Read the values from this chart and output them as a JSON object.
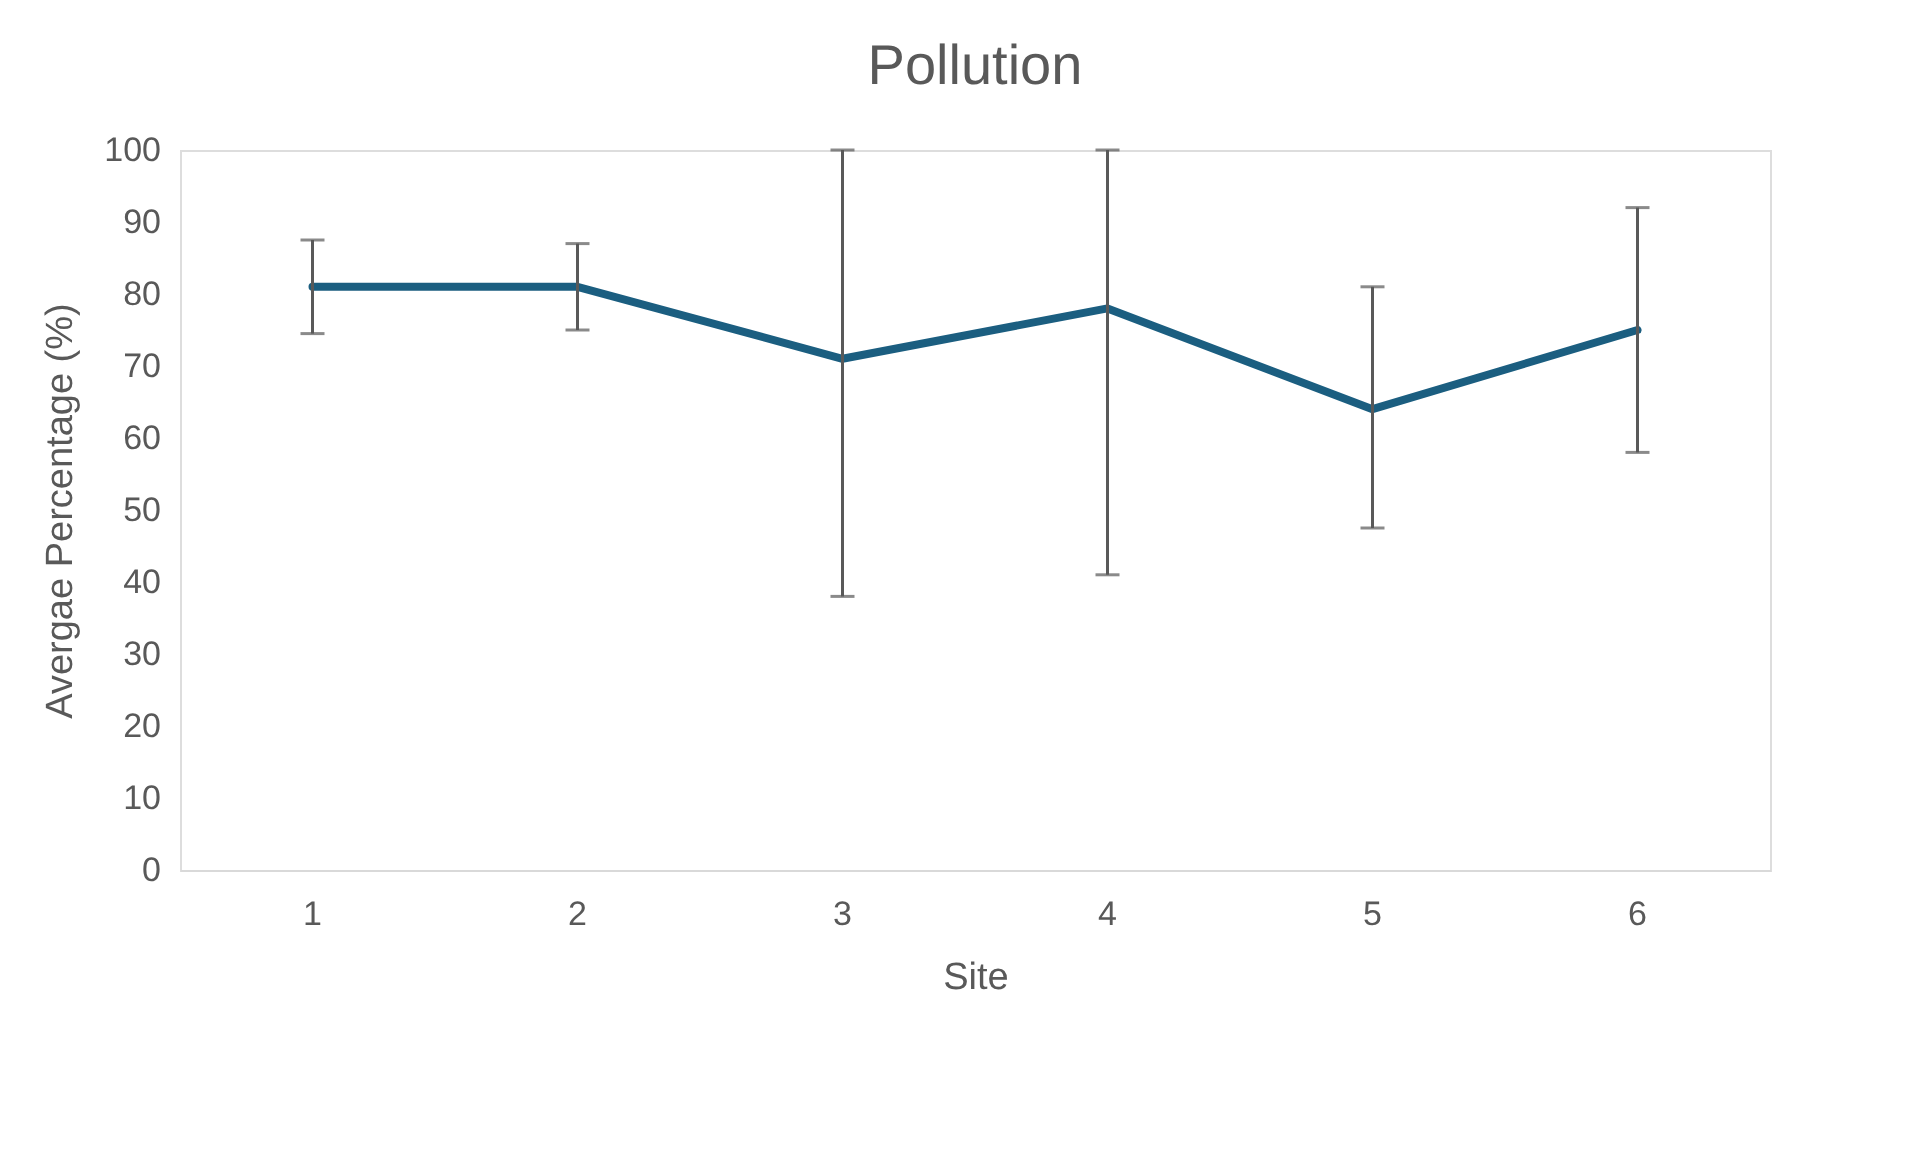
{
  "chart_data": {
    "type": "line",
    "title": "Pollution",
    "xlabel": "Site",
    "ylabel": "Avergae Percentage (%)",
    "categories": [
      "1",
      "2",
      "3",
      "4",
      "5",
      "6"
    ],
    "series": [
      {
        "color": "#1b5e80",
        "values": [
          81,
          81,
          71,
          78,
          64,
          75
        ],
        "errors": [
          [
            74.5,
            87.5
          ],
          [
            75,
            87
          ],
          [
            38,
            100
          ],
          [
            41,
            100
          ],
          [
            47.5,
            81
          ],
          [
            58,
            92
          ]
        ]
      }
    ],
    "ylim": [
      0,
      100
    ],
    "yticks": [
      0,
      10,
      20,
      30,
      40,
      50,
      60,
      70,
      80,
      90,
      100
    ],
    "grid": false,
    "marker": "none",
    "line_style": "solid"
  }
}
